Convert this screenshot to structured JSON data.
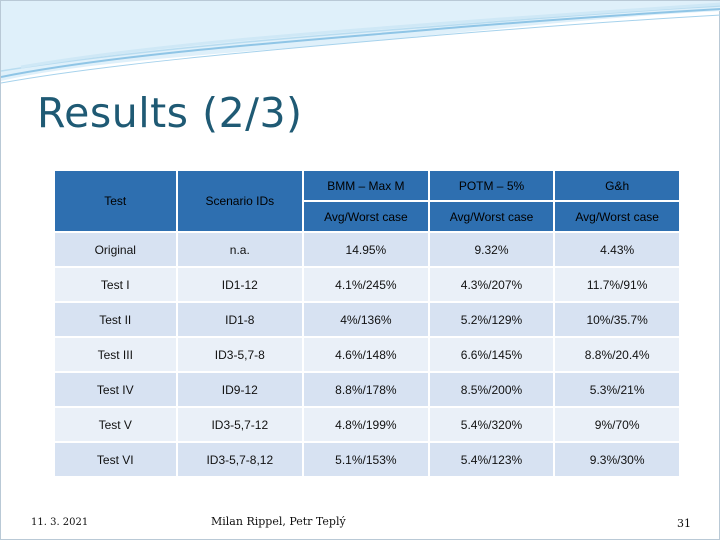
{
  "slide": {
    "title": "Results (2/3)",
    "colors": {
      "header_bg": "#2e6fb0",
      "row_dark": "#d7e2f2",
      "row_light": "#eaf0f8",
      "title": "#1f5a74",
      "swoosh": "#8fc5e6"
    }
  },
  "table": {
    "headers": {
      "test": "Test",
      "scenario": "Scenario IDs",
      "bmm": "BMM – Max M",
      "potm": "POTM – 5%",
      "gh": "G&h",
      "sub_bmm": "Avg/Worst case",
      "sub_potm": "Avg/Worst case",
      "sub_gh": "Avg/Worst case"
    },
    "rows": [
      {
        "test": "Original",
        "scenario": "n.a.",
        "bmm": "14.95%",
        "potm": "9.32%",
        "gh": "4.43%"
      },
      {
        "test": "Test I",
        "scenario": "ID1-12",
        "bmm": "4.1%/245%",
        "potm": "4.3%/207%",
        "gh": "11.7%/91%"
      },
      {
        "test": "Test II",
        "scenario": "ID1-8",
        "bmm": "4%/136%",
        "potm": "5.2%/129%",
        "gh": "10%/35.7%"
      },
      {
        "test": "Test III",
        "scenario": "ID3-5,7-8",
        "bmm": "4.6%/148%",
        "potm": "6.6%/145%",
        "gh": "8.8%/20.4%"
      },
      {
        "test": "Test IV",
        "scenario": "ID9-12",
        "bmm": "8.8%/178%",
        "potm": "8.5%/200%",
        "gh": "5.3%/21%"
      },
      {
        "test": "Test V",
        "scenario": "ID3-5,7-12",
        "bmm": "4.8%/199%",
        "potm": "5.4%/320%",
        "gh": "9%/70%"
      },
      {
        "test": "Test VI",
        "scenario": "ID3-5,7-8,12",
        "bmm": "5.1%/153%",
        "potm": "5.4%/123%",
        "gh": "9.3%/30%"
      }
    ]
  },
  "footer": {
    "date": "11. 3. 2021",
    "authors": "Milan Rippel, Petr Teplý",
    "page": "31"
  }
}
